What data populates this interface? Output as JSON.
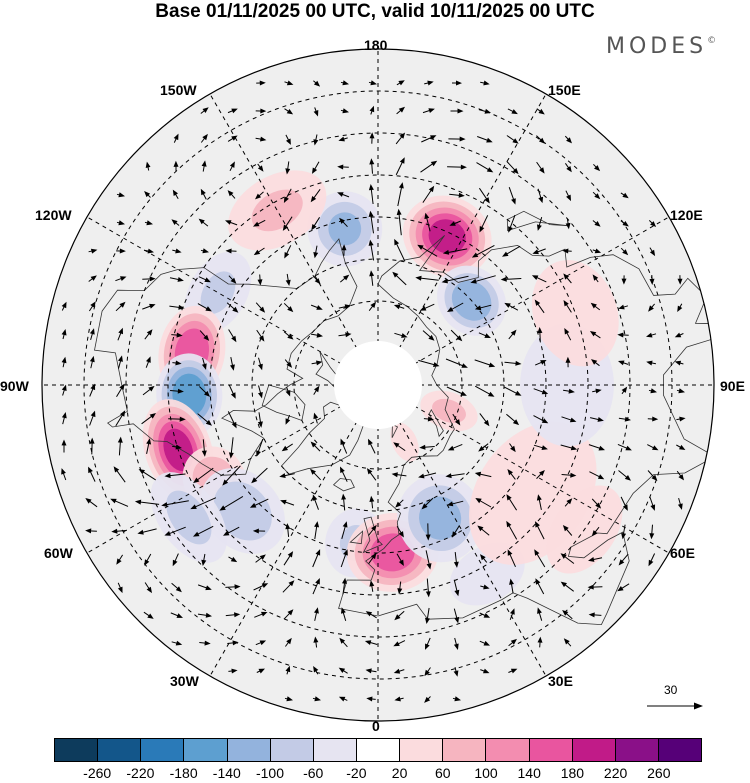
{
  "title": "Base 01/11/2025 00 UTC, valid 10/11/2025 00 UTC",
  "brand": {
    "name": "MODES",
    "mark": "©"
  },
  "longitude_labels": {
    "lon_180": "180",
    "lon_150e": "150E",
    "lon_120e": "120E",
    "lon_90e": "90E",
    "lon_60e": "60E",
    "lon_30e": "30E",
    "lon_0": "0",
    "lon_30w": "30W",
    "lon_60w": "60W",
    "lon_90w": "90W",
    "lon_120w": "120W",
    "lon_150w": "150W"
  },
  "reference_vector": {
    "value": "30"
  },
  "colorbar": {
    "colors": [
      "#0d3b5c",
      "#13568a",
      "#2a7ab8",
      "#5d9fd0",
      "#93b3dd",
      "#c3cbe6",
      "#e6e4f1",
      "#ffffff",
      "#fbdcde",
      "#f6b5c0",
      "#f38db0",
      "#e9559f",
      "#c11b88",
      "#8a1088",
      "#560078"
    ],
    "labels": [
      "-260",
      "-220",
      "-180",
      "-140",
      "-100",
      "-60",
      "-20",
      "20",
      "60",
      "100",
      "140",
      "180",
      "220",
      "260"
    ]
  },
  "field_anomalies": [
    {
      "lon": 155,
      "lat": 51,
      "value": 200,
      "spread_lon": 10,
      "spread_lat": 6
    },
    {
      "lon": 132,
      "lat": 60,
      "value": -140,
      "spread_lon": 11,
      "spread_lat": 5
    },
    {
      "lon": -168,
      "lat": 52,
      "value": -110,
      "spread_lon": 9,
      "spread_lat": 6
    },
    {
      "lon": -150,
      "lat": 42,
      "value": 70,
      "spread_lon": 11,
      "spread_lat": 6
    },
    {
      "lon": -120,
      "lat": 46,
      "value": -70,
      "spread_lon": 10,
      "spread_lat": 5
    },
    {
      "lon": -100,
      "lat": 45,
      "value": 180,
      "spread_lon": 9,
      "spread_lat": 5
    },
    {
      "lon": -87,
      "lat": 45,
      "value": -180,
      "spread_lon": 8,
      "spread_lat": 5
    },
    {
      "lon": -72,
      "lat": 40,
      "value": 200,
      "spread_lon": 9,
      "spread_lat": 5
    },
    {
      "lon": -60,
      "lat": 45,
      "value": 100,
      "spread_lon": 7,
      "spread_lat": 5
    },
    {
      "lon": -47,
      "lat": 46,
      "value": -100,
      "spread_lon": 10,
      "spread_lat": 6
    },
    {
      "lon": -55,
      "lat": 35,
      "value": -80,
      "spread_lon": 9,
      "spread_lat": 5
    },
    {
      "lon": -8,
      "lat": 52,
      "value": -70,
      "spread_lon": 8,
      "spread_lat": 6
    },
    {
      "lon": 5,
      "lat": 50,
      "value": 170,
      "spread_lon": 10,
      "spread_lat": 6
    },
    {
      "lon": 25,
      "lat": 55,
      "value": -120,
      "spread_lon": 11,
      "spread_lat": 7
    },
    {
      "lon": 30,
      "lat": 38,
      "value": -60,
      "spread_lon": 8,
      "spread_lat": 5
    },
    {
      "lon": 55,
      "lat": 45,
      "value": 60,
      "spread_lon": 18,
      "spread_lat": 10
    },
    {
      "lon": 55,
      "lat": 30,
      "value": 50,
      "spread_lon": 9,
      "spread_lat": 6
    },
    {
      "lon": 90,
      "lat": 45,
      "value": -50,
      "spread_lon": 15,
      "spread_lat": 9
    },
    {
      "lon": 110,
      "lat": 40,
      "value": 50,
      "spread_lon": 12,
      "spread_lat": 8
    },
    {
      "lon": 70,
      "lat": 72,
      "value": 80,
      "spread_lon": 10,
      "spread_lat": 5
    },
    {
      "lon": 25,
      "lat": 75,
      "value": 50,
      "spread_lon": 8,
      "spread_lat": 4
    }
  ]
}
